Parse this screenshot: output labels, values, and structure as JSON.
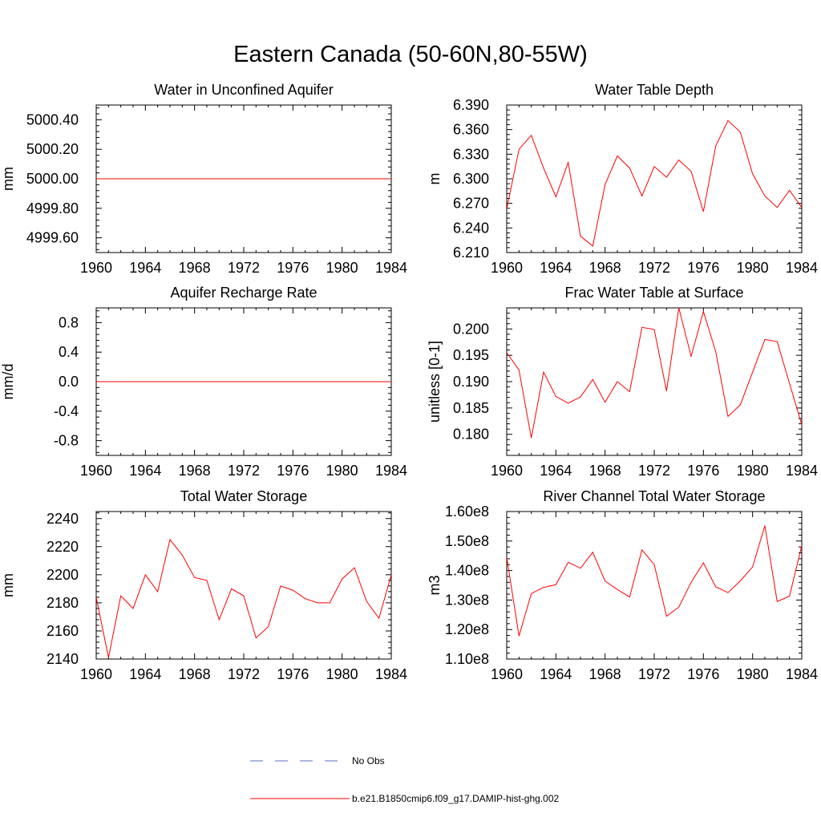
{
  "page_title": "Eastern Canada (50-60N,80-55W)",
  "legend": {
    "items": [
      {
        "label": "No Obs",
        "color": "#5a6fbf",
        "style": "dashed"
      },
      {
        "label": "b.e21.B1850cmip6.f09_g17.DAMIP-hist-ghg.002",
        "color": "#ff0000",
        "style": "solid"
      }
    ]
  },
  "chart_data": [
    {
      "type": "line",
      "title": "Water in Unconfined Aquifer",
      "ylabel": "mm",
      "xlim": [
        1960,
        1984
      ],
      "ylim": [
        4999.5,
        5000.5
      ],
      "x_ticks": [
        1960,
        1964,
        1968,
        1972,
        1976,
        1980,
        1984
      ],
      "y_ticks": [
        4999.6,
        4999.8,
        5000.0,
        5000.2,
        5000.4
      ],
      "y_tick_labels": [
        "4999.60",
        "4999.80",
        "5000.00",
        "5000.20",
        "5000.40"
      ],
      "series": [
        {
          "color": "#ff0000",
          "x": [
            1960,
            1984
          ],
          "values": [
            5000.0,
            5000.0
          ]
        }
      ]
    },
    {
      "type": "line",
      "title": "Water Table Depth",
      "ylabel": "m",
      "xlim": [
        1960,
        1984
      ],
      "ylim": [
        6.21,
        6.39
      ],
      "x_ticks": [
        1960,
        1964,
        1968,
        1972,
        1976,
        1980,
        1984
      ],
      "y_ticks": [
        6.21,
        6.24,
        6.27,
        6.3,
        6.33,
        6.36,
        6.39
      ],
      "y_tick_labels": [
        "6.210",
        "6.240",
        "6.270",
        "6.300",
        "6.330",
        "6.360",
        "6.390"
      ],
      "series": [
        {
          "color": "#ff0000",
          "x": [
            1960,
            1961,
            1962,
            1963,
            1964,
            1965,
            1966,
            1967,
            1968,
            1969,
            1970,
            1971,
            1972,
            1973,
            1974,
            1975,
            1976,
            1977,
            1978,
            1979,
            1980,
            1981,
            1982,
            1983,
            1984
          ],
          "values": [
            6.263,
            6.336,
            6.353,
            6.313,
            6.278,
            6.32,
            6.23,
            6.218,
            6.293,
            6.328,
            6.313,
            6.279,
            6.315,
            6.302,
            6.323,
            6.309,
            6.26,
            6.34,
            6.371,
            6.357,
            6.306,
            6.279,
            6.265,
            6.286,
            6.265
          ]
        }
      ]
    },
    {
      "type": "line",
      "title": "Aquifer Recharge Rate",
      "ylabel": "mm/d",
      "xlim": [
        1960,
        1984
      ],
      "ylim": [
        -1.0,
        1.0
      ],
      "x_ticks": [
        1960,
        1964,
        1968,
        1972,
        1976,
        1980,
        1984
      ],
      "y_ticks": [
        -0.8,
        -0.4,
        0.0,
        0.4,
        0.8
      ],
      "y_tick_labels": [
        "-0.8",
        "-0.4",
        "0.0",
        "0.4",
        "0.8"
      ],
      "series": [
        {
          "color": "#ff0000",
          "x": [
            1960,
            1984
          ],
          "values": [
            0.0,
            0.0
          ]
        }
      ]
    },
    {
      "type": "line",
      "title": "Frac Water Table at Surface",
      "ylabel": "unitless [0-1]",
      "xlim": [
        1960,
        1984
      ],
      "ylim": [
        0.176,
        0.204
      ],
      "x_ticks": [
        1960,
        1964,
        1968,
        1972,
        1976,
        1980,
        1984
      ],
      "y_ticks": [
        0.18,
        0.185,
        0.19,
        0.195,
        0.2
      ],
      "y_tick_labels": [
        "0.180",
        "0.185",
        "0.190",
        "0.195",
        "0.200"
      ],
      "series": [
        {
          "color": "#ff0000",
          "x": [
            1960,
            1961,
            1962,
            1963,
            1964,
            1965,
            1966,
            1967,
            1968,
            1969,
            1970,
            1971,
            1972,
            1973,
            1974,
            1975,
            1976,
            1977,
            1978,
            1979,
            1980,
            1981,
            1982,
            1983,
            1984
          ],
          "values": [
            0.1955,
            0.1922,
            0.1793,
            0.1918,
            0.1872,
            0.1859,
            0.1871,
            0.1904,
            0.1861,
            0.19,
            0.1881,
            0.2003,
            0.1999,
            0.1882,
            0.204,
            0.1948,
            0.2033,
            0.1957,
            0.1834,
            0.1856,
            0.1918,
            0.198,
            0.1976,
            0.1897,
            0.1818
          ]
        }
      ]
    },
    {
      "type": "line",
      "title": "Total Water Storage",
      "ylabel": "mm",
      "xlim": [
        1960,
        1984
      ],
      "ylim": [
        2140,
        2245
      ],
      "x_ticks": [
        1960,
        1964,
        1968,
        1972,
        1976,
        1980,
        1984
      ],
      "y_ticks": [
        2140,
        2160,
        2180,
        2200,
        2220,
        2240
      ],
      "y_tick_labels": [
        "2140",
        "2160",
        "2180",
        "2200",
        "2220",
        "2240"
      ],
      "series": [
        {
          "color": "#ff0000",
          "x": [
            1960,
            1961,
            1962,
            1963,
            1964,
            1965,
            1966,
            1967,
            1968,
            1969,
            1970,
            1971,
            1972,
            1973,
            1974,
            1975,
            1976,
            1977,
            1978,
            1979,
            1980,
            1981,
            1982,
            1983,
            1984
          ],
          "values": [
            2184,
            2141,
            2185,
            2176,
            2200,
            2188,
            2225,
            2214,
            2198,
            2196,
            2168,
            2190,
            2185,
            2155,
            2163,
            2192,
            2189,
            2183,
            2180,
            2180,
            2197,
            2205,
            2181,
            2169,
            2200
          ]
        }
      ]
    },
    {
      "type": "line",
      "title": "River Channel Total Water Storage",
      "ylabel": "m3",
      "xlim": [
        1960,
        1984
      ],
      "ylim": [
        110000000.0,
        160000000.0
      ],
      "x_ticks": [
        1960,
        1964,
        1968,
        1972,
        1976,
        1980,
        1984
      ],
      "y_ticks": [
        110000000.0,
        120000000.0,
        130000000.0,
        140000000.0,
        150000000.0,
        160000000.0
      ],
      "y_tick_labels": [
        "1.10e8",
        "1.20e8",
        "1.30e8",
        "1.40e8",
        "1.50e8",
        "1.60e8"
      ],
      "series": [
        {
          "color": "#ff0000",
          "x": [
            1960,
            1961,
            1962,
            1963,
            1964,
            1965,
            1966,
            1967,
            1968,
            1969,
            1970,
            1971,
            1972,
            1973,
            1974,
            1975,
            1976,
            1977,
            1978,
            1979,
            1980,
            1981,
            1982,
            1983,
            1984
          ],
          "values": [
            144500000.0,
            117800000.0,
            132200000.0,
            134300000.0,
            135200000.0,
            142800000.0,
            140800000.0,
            146200000.0,
            136400000.0,
            133600000.0,
            131000000.0,
            147000000.0,
            142000000.0,
            124500000.0,
            127600000.0,
            136000000.0,
            142600000.0,
            134500000.0,
            132500000.0,
            136500000.0,
            141200000.0,
            155200000.0,
            129500000.0,
            131300000.0,
            148500000.0
          ]
        }
      ]
    }
  ]
}
